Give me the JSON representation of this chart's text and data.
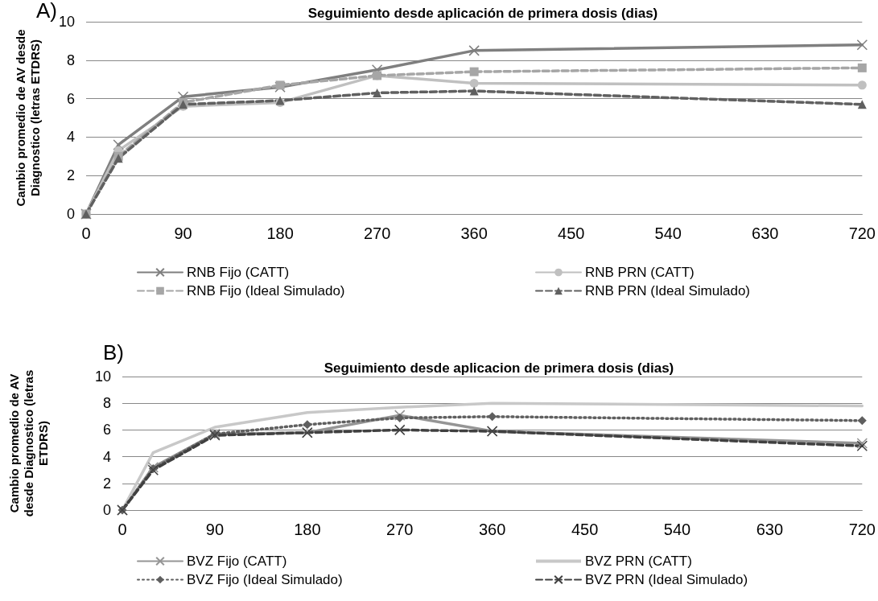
{
  "chart_data": [
    {
      "type": "line",
      "title": "Seguimiento desde aplicación de primera dosis (dias)",
      "ylabel": "Cambio promedio de AV desde Diagnostico (letras ETDRS)",
      "annotations": [
        "A)"
      ],
      "x": [
        0,
        30,
        90,
        180,
        270,
        360,
        720
      ],
      "xlim": [
        0,
        720
      ],
      "xticks": [
        0,
        90,
        180,
        270,
        360,
        450,
        540,
        630,
        720
      ],
      "ylim": [
        0,
        10
      ],
      "yticks": [
        0,
        2,
        4,
        6,
        8,
        10
      ],
      "grid": "y",
      "legend": "bottom",
      "series": [
        {
          "name": "RNB Fijo (CATT)",
          "color": "#7f7f7f",
          "marker": "cross",
          "line_style": "solid",
          "values": [
            0,
            3.6,
            6.1,
            6.6,
            7.5,
            8.5,
            8.8
          ]
        },
        {
          "name": "RNB PRN (CATT)",
          "color": "#c0c0c0",
          "marker": "circle",
          "line_style": "solid",
          "values": [
            0,
            3.3,
            5.6,
            5.8,
            7.2,
            6.8,
            6.7
          ]
        },
        {
          "name": "RNB Fijo (Ideal Simulado)",
          "color": "#a6a6a6",
          "marker": "square",
          "line_style": "dashed",
          "values": [
            0,
            3.0,
            5.8,
            6.7,
            7.2,
            7.4,
            7.6
          ]
        },
        {
          "name": "RNB PRN (Ideal Simulado)",
          "color": "#606060",
          "marker": "triangle",
          "line_style": "dashed",
          "values": [
            0,
            2.9,
            5.7,
            5.9,
            6.3,
            6.4,
            5.7
          ]
        }
      ]
    },
    {
      "type": "line",
      "title": "Seguimiento desde aplicacion de primera dosis (dias)",
      "ylabel": "Cambio promedio de AV desde Diagnostico (letras ETDRS)",
      "annotations": [
        "B)"
      ],
      "x": [
        0,
        30,
        90,
        180,
        270,
        360,
        720
      ],
      "xlim": [
        0,
        720
      ],
      "xticks": [
        0,
        90,
        180,
        270,
        360,
        450,
        540,
        630,
        720
      ],
      "ylim": [
        0,
        10
      ],
      "yticks": [
        0,
        2,
        4,
        6,
        8,
        10
      ],
      "grid": "y",
      "legend": "bottom",
      "series": [
        {
          "name": "BVZ Fijo (CATT)",
          "color": "#959595",
          "marker": "cross",
          "line_style": "solid",
          "values": [
            0,
            3.2,
            5.7,
            5.8,
            7.1,
            5.9,
            5.0
          ]
        },
        {
          "name": "BVZ PRN (CATT)",
          "color": "#c8c8c8",
          "marker": "none",
          "line_style": "solid",
          "values": [
            0,
            4.3,
            6.2,
            7.3,
            7.7,
            8.0,
            7.8
          ]
        },
        {
          "name": "BVZ Fijo (Ideal Simulado)",
          "color": "#5f5f5f",
          "marker": "diamond",
          "line_style": "dotted",
          "values": [
            0,
            3.1,
            5.7,
            6.4,
            6.9,
            7.0,
            6.7
          ]
        },
        {
          "name": "BVZ PRN (Ideal Simulado)",
          "color": "#404040",
          "marker": "cross",
          "line_style": "dashed",
          "values": [
            0,
            3.0,
            5.6,
            5.8,
            6.0,
            5.9,
            4.8
          ]
        }
      ]
    }
  ]
}
